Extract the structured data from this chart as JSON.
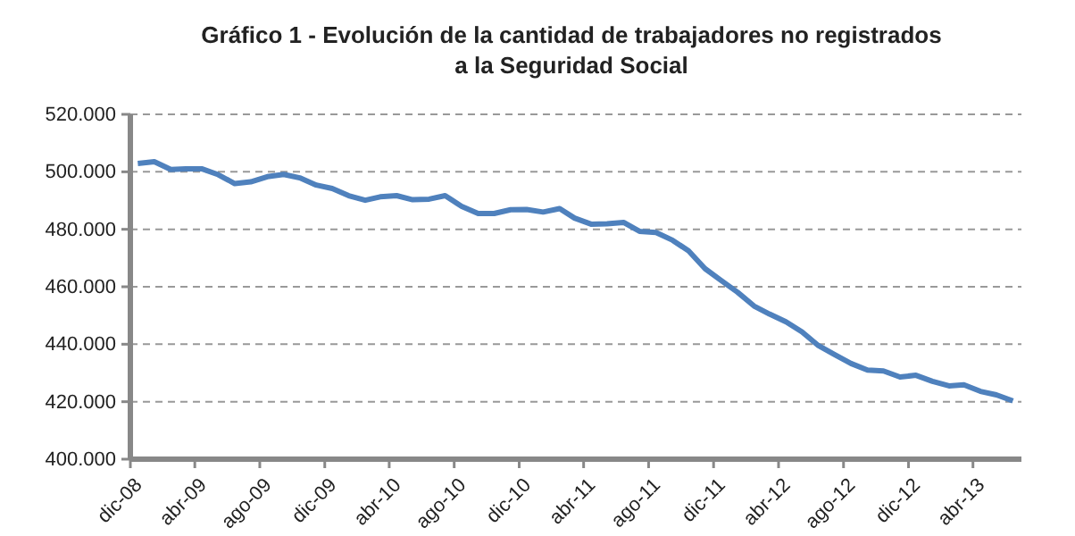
{
  "chart_data": {
    "type": "line",
    "title": "Gráfico 1 - Evolución de la cantidad de trabajadores no registrados\na la Seguridad Social",
    "x": [
      "2008-12-15",
      "2009-01-15",
      "2009-02-15",
      "2009-03-15",
      "2009-04-15",
      "2009-05-15",
      "2009-06-15",
      "2009-07-15",
      "2009-08-15",
      "2009-09-15",
      "2009-10-15",
      "2009-11-15",
      "2009-12-15",
      "2010-01-15",
      "2010-02-15",
      "2010-03-15",
      "2010-04-15",
      "2010-05-15",
      "2010-06-15",
      "2010-07-15",
      "2010-08-15",
      "2010-09-15",
      "2010-10-15",
      "2010-11-15",
      "2010-12-15",
      "2011-01-15",
      "2011-02-15",
      "2011-03-15",
      "2011-04-15",
      "2011-05-15",
      "2011-06-15",
      "2011-07-15",
      "2011-08-15",
      "2011-09-15",
      "2011-10-15",
      "2011-11-15",
      "2011-12-15",
      "2012-01-15",
      "2012-02-15",
      "2012-03-15",
      "2012-04-15",
      "2012-05-15",
      "2012-06-15",
      "2012-07-15",
      "2012-08-15",
      "2012-09-15",
      "2012-10-15",
      "2012-11-15",
      "2012-12-15",
      "2013-01-15",
      "2013-02-15",
      "2013-03-15",
      "2013-04-15",
      "2013-05-15",
      "2013-06-15"
    ],
    "series": [
      {
        "color": "#4f81bd",
        "values": [
          502900,
          503500,
          500800,
          501000,
          501000,
          499000,
          495900,
          496500,
          498300,
          499100,
          497900,
          495400,
          494200,
          491700,
          490100,
          491300,
          491700,
          490300,
          490500,
          491700,
          488000,
          485500,
          485500,
          486800,
          486900,
          486000,
          487200,
          483900,
          481800,
          481900,
          482400,
          479300,
          478900,
          476200,
          472500,
          466300,
          462200,
          458100,
          453300,
          450500,
          447800,
          444300,
          439500,
          436400,
          433300,
          431000,
          430700,
          428600,
          429200,
          427100,
          425500,
          425900,
          423600,
          422400,
          420300
        ]
      }
    ],
    "xlim": [
      "2008-12-01",
      "2013-07-01"
    ],
    "xticks": [
      {
        "value": "2008-12-01",
        "label": "dic-08"
      },
      {
        "value": "2009-04-01",
        "label": "abr-09"
      },
      {
        "value": "2009-08-01",
        "label": "ago-09"
      },
      {
        "value": "2009-12-01",
        "label": "dic-09"
      },
      {
        "value": "2010-04-01",
        "label": "abr-10"
      },
      {
        "value": "2010-08-01",
        "label": "ago-10"
      },
      {
        "value": "2010-12-01",
        "label": "dic-10"
      },
      {
        "value": "2011-04-01",
        "label": "abr-11"
      },
      {
        "value": "2011-08-01",
        "label": "ago-11"
      },
      {
        "value": "2011-12-01",
        "label": "dic-11"
      },
      {
        "value": "2012-04-01",
        "label": "abr-12"
      },
      {
        "value": "2012-08-01",
        "label": "ago-12"
      },
      {
        "value": "2012-12-01",
        "label": "dic-12"
      },
      {
        "value": "2013-04-01",
        "label": "abr-13"
      }
    ],
    "ylim": [
      400000,
      520000
    ],
    "yticks": [
      {
        "value": 400000,
        "label": "400.000"
      },
      {
        "value": 420000,
        "label": "420.000"
      },
      {
        "value": 440000,
        "label": "440.000"
      },
      {
        "value": 460000,
        "label": "460.000"
      },
      {
        "value": 480000,
        "label": "480.000"
      },
      {
        "value": 500000,
        "label": "500.000"
      },
      {
        "value": 520000,
        "label": "520.000"
      }
    ],
    "grid": "y",
    "marker": "none",
    "line_style": "solid"
  }
}
